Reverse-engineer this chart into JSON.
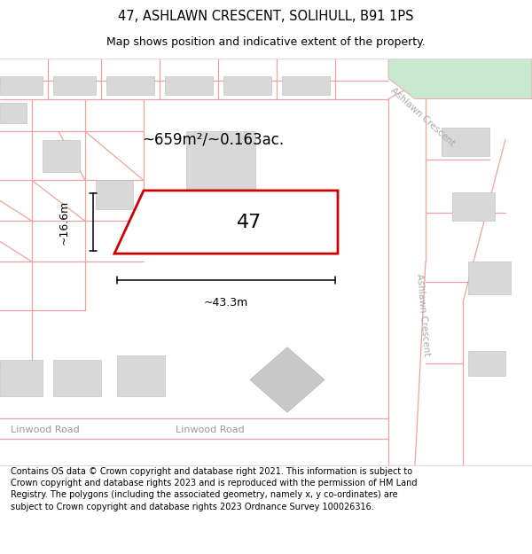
{
  "title": "47, ASHLAWN CRESCENT, SOLIHULL, B91 1PS",
  "subtitle": "Map shows position and indicative extent of the property.",
  "footer": "Contains OS data © Crown copyright and database right 2021. This information is subject to Crown copyright and database rights 2023 and is reproduced with the permission of HM Land Registry. The polygons (including the associated geometry, namely x, y co-ordinates) are subject to Crown copyright and database rights 2023 Ordnance Survey 100026316.",
  "bg_color": "#ffffff",
  "road_color": "#f0a0a0",
  "building_fill": "#d8d8d8",
  "green_fill": "#c8e8d0",
  "area_text": "~659m²/~0.163ac.",
  "width_text": "~43.3m",
  "height_text": "~16.6m",
  "title_fontsize": 10.5,
  "subtitle_fontsize": 9,
  "footer_fontsize": 7.0,
  "area_fontsize": 12,
  "num_fontsize": 16,
  "dim_fontsize": 9,
  "road_fontsize": 8,
  "street_fontsize": 7.5
}
